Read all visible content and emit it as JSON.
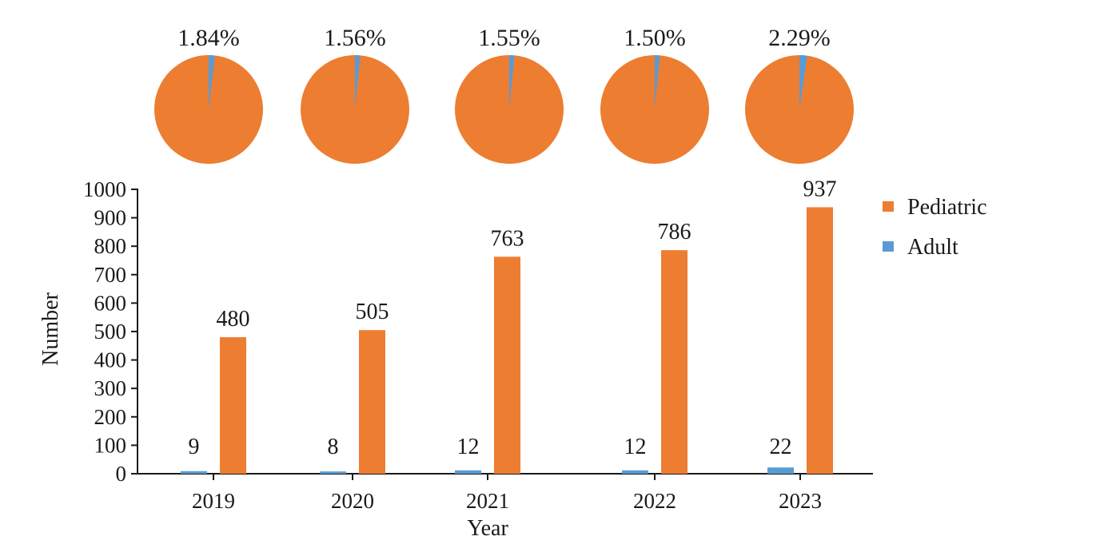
{
  "chart_data": {
    "type": "bar",
    "xlabel": "Year",
    "ylabel": "Number",
    "ylim": [
      0,
      1000
    ],
    "yticks": [
      0,
      100,
      200,
      300,
      400,
      500,
      600,
      700,
      800,
      900,
      1000
    ],
    "categories": [
      "2019",
      "2020",
      "2021",
      "2022",
      "2023"
    ],
    "series": [
      {
        "name": "Adult",
        "values": [
          9,
          8,
          12,
          12,
          22
        ],
        "color": "#5b9bd5"
      },
      {
        "name": "Pediatric",
        "values": [
          480,
          505,
          763,
          786,
          937
        ],
        "color": "#ed7d31"
      }
    ],
    "legend": {
      "position": "top-right",
      "entries": [
        "Pediatric",
        "Adult"
      ]
    },
    "grid": false,
    "pies": [
      {
        "year": "2019",
        "label": "1.84%",
        "adult_share": 1.84
      },
      {
        "year": "2020",
        "label": "1.56%",
        "adult_share": 1.56
      },
      {
        "year": "2021",
        "label": "1.55%",
        "adult_share": 1.55
      },
      {
        "year": "2022",
        "label": "1.50%",
        "adult_share": 1.5
      },
      {
        "year": "2023",
        "label": "2.29%",
        "adult_share": 2.29
      }
    ]
  }
}
